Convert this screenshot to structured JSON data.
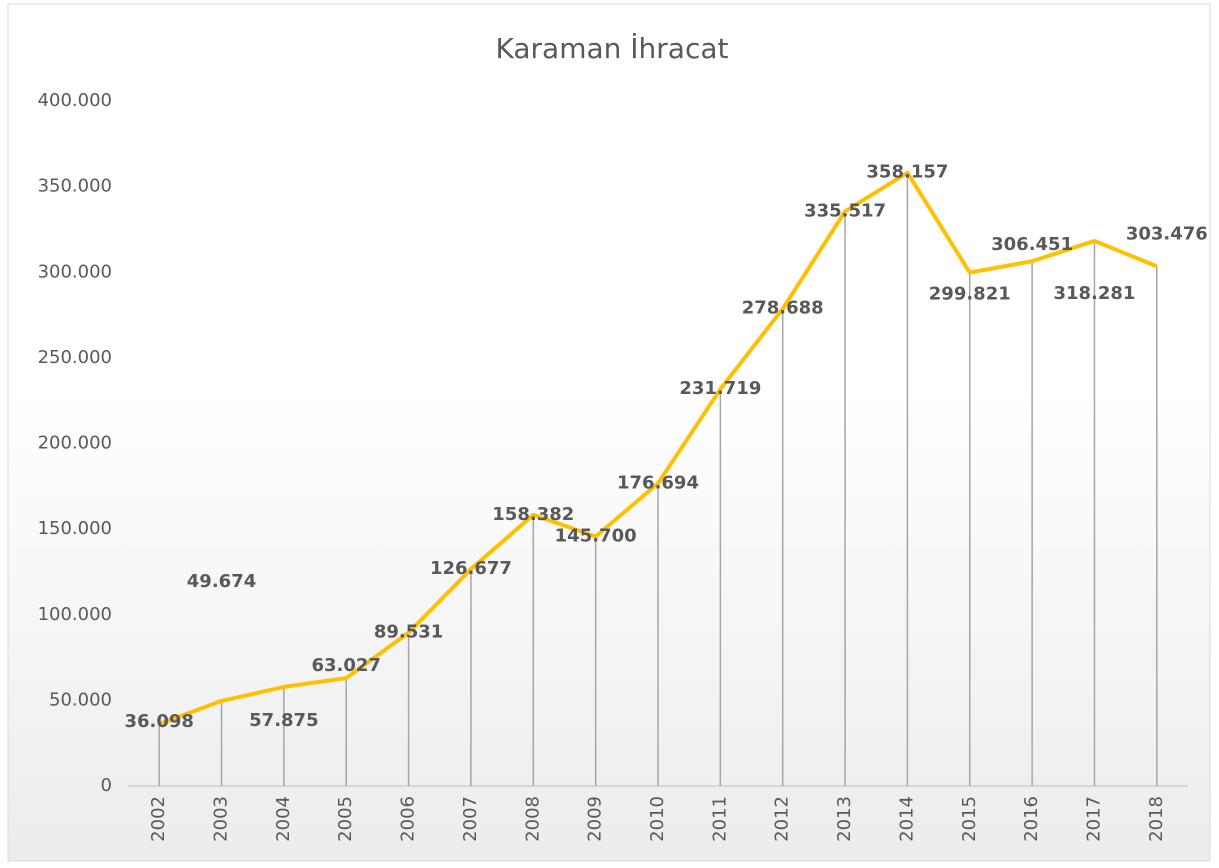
{
  "chart_data": {
    "type": "line",
    "title": "Karaman İhracat",
    "categories": [
      "2002",
      "2003",
      "2004",
      "2005",
      "2006",
      "2007",
      "2008",
      "2009",
      "2010",
      "2011",
      "2012",
      "2013",
      "2014",
      "2015",
      "2016",
      "2017",
      "2018"
    ],
    "series": [
      {
        "name": "Karaman İhracat",
        "color": "#FFC000",
        "values": [
          36098,
          49674,
          57875,
          63027,
          89531,
          126677,
          158382,
          145700,
          176694,
          231719,
          278688,
          335517,
          358157,
          299821,
          306451,
          318281,
          303476
        ],
        "value_labels": [
          "36.098",
          "49.674",
          "57.875",
          "63.027",
          "89.531",
          "126.677",
          "158.382",
          "145.700",
          "176.694",
          "231.719",
          "278.688",
          "335.517",
          "358.157",
          "299.821",
          "306.451",
          "318.281",
          "303.476"
        ]
      }
    ],
    "ylim": [
      0,
      400000
    ],
    "yticks": [
      0,
      {
        "value": 50000,
        "label": "50.000"
      },
      {
        "value": 100000,
        "label": "100.000"
      },
      {
        "value": 150000,
        "label": "150.000"
      },
      {
        "value": 200000,
        "label": "200.000"
      },
      {
        "value": 250000,
        "label": "250.000"
      },
      {
        "value": 300000,
        "label": "300.000"
      },
      {
        "value": 350000,
        "label": "350.000"
      },
      {
        "value": 400000,
        "label": "400.000"
      }
    ],
    "drop_lines": true
  }
}
